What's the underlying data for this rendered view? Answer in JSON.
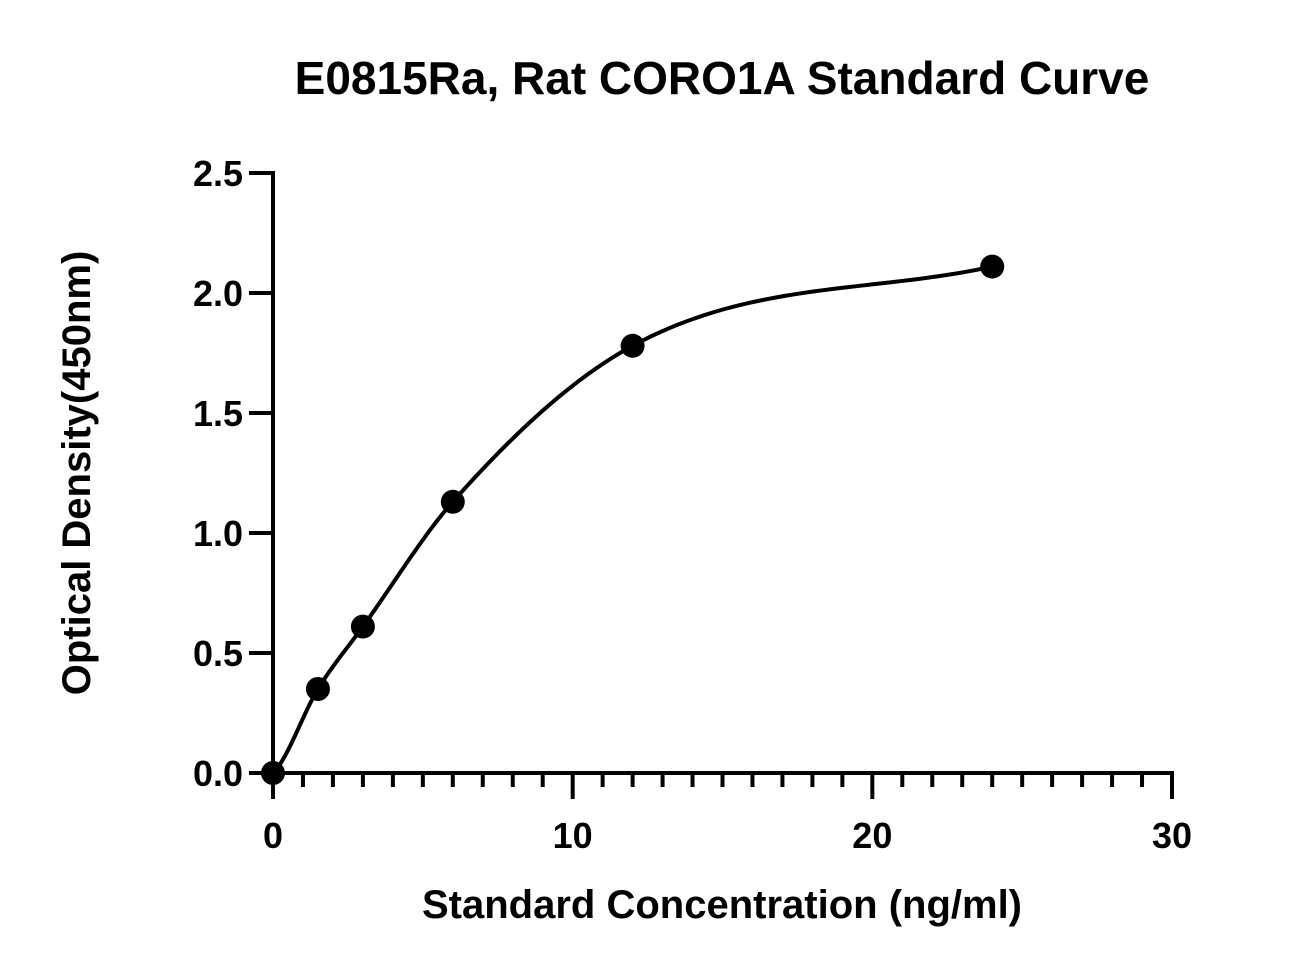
{
  "chart_data": {
    "type": "scatter",
    "title": "E0815Ra, Rat CORO1A Standard Curve",
    "xlabel": "Standard Concentration (ng/ml)",
    "ylabel": "Optical Density(450nm)",
    "xlim": [
      0,
      30
    ],
    "ylim": [
      0,
      2.5
    ],
    "x_ticks": [
      "0",
      "10",
      "20",
      "30"
    ],
    "y_ticks": [
      "0.0",
      "0.5",
      "1.0",
      "1.5",
      "2.0",
      "2.5"
    ],
    "x_minor_step": 1,
    "grid": false,
    "legend": "none",
    "series": [
      {
        "x": [
          0,
          1.5,
          3,
          6,
          12,
          24
        ],
        "y": [
          0.0,
          0.35,
          0.61,
          1.13,
          1.78,
          2.11
        ],
        "fit": "four-parameter logistic",
        "color": "#000000"
      }
    ]
  }
}
